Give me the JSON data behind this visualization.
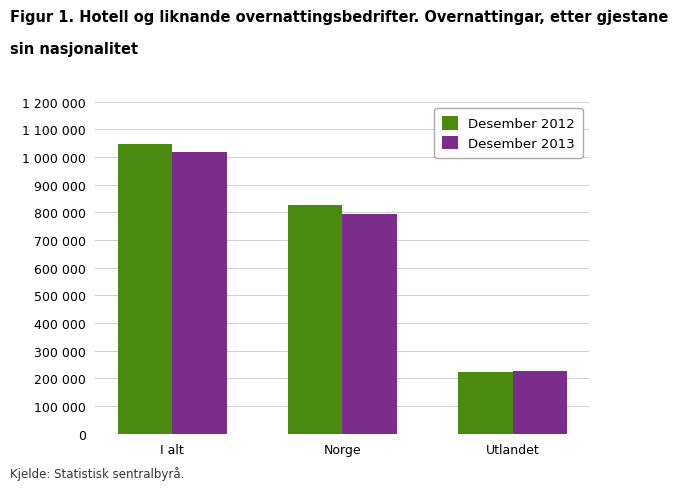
{
  "title_line1": "Figur 1. Hotell og liknande overnattingsbedrifter. Overnattingar, etter gjestane",
  "title_line2": "sin nasjonalitet",
  "categories": [
    "I alt",
    "Norge",
    "Utlandet"
  ],
  "series": [
    {
      "label": "Desember 2012",
      "values": [
        1047000,
        828000,
        224000
      ],
      "color": "#4a8a0e"
    },
    {
      "label": "Desember 2013",
      "values": [
        1018000,
        795000,
        228000
      ],
      "color": "#7b2d8b"
    }
  ],
  "ylim": [
    0,
    1200000
  ],
  "yticks": [
    0,
    100000,
    200000,
    300000,
    400000,
    500000,
    600000,
    700000,
    800000,
    900000,
    1000000,
    1100000,
    1200000
  ],
  "source": "Kjelde: Statistisk sentralbyrå.",
  "background_color": "#ffffff",
  "grid_color": "#d0d0d0",
  "title_fontsize": 10.5,
  "legend_fontsize": 9.5,
  "tick_fontsize": 9,
  "source_fontsize": 8.5,
  "bar_width": 0.32
}
